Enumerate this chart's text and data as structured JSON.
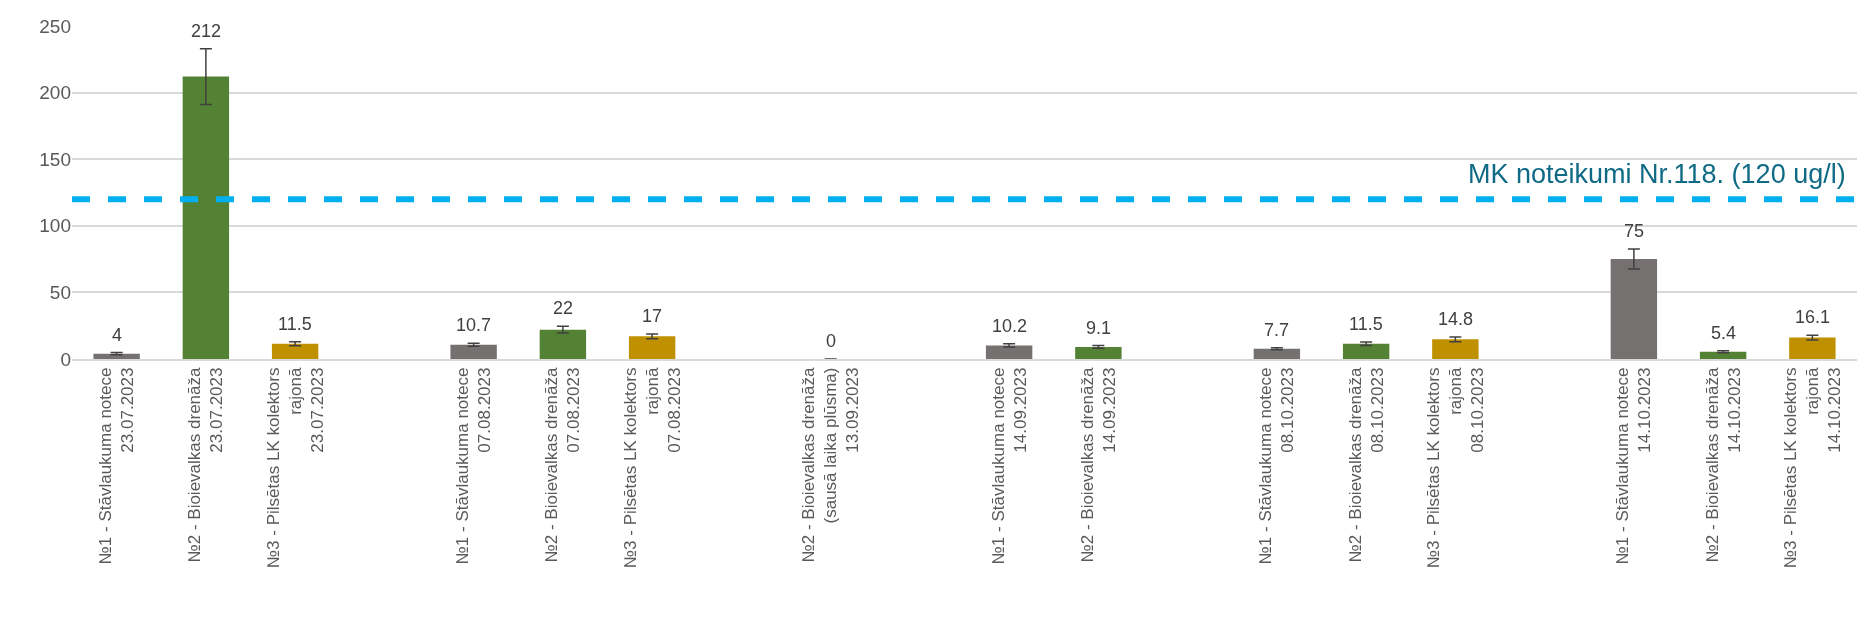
{
  "chart_data": {
    "type": "bar",
    "categories": [
      "№1 - Stāvlaukuma notece\n23.07.2023",
      "№2 - Bioievalkas drenāža\n23.07.2023",
      "№3 - Pilsētas LK kolektors\nrajonā\n23.07.2023",
      null,
      "№1 - Stāvlaukuma notece\n07.08.2023",
      "№2 - Bioievalkas drenāža\n07.08.2023",
      "№3 - Pilsētas LK kolektors\nrajonā\n07.08.2023",
      null,
      "№2 - Bioievalkas drenāža\n(sausā laika plūsma)\n13.09.2023",
      null,
      "№1 - Stāvlaukuma notece\n14.09.2023",
      "№2 - Bioievalkas drenāža\n14.09.2023",
      null,
      "№1 - Stāvlaukuma notece\n08.10.2023",
      "№2 - Bioievalkas drenāža\n08.10.2023",
      "№3 - Pilsētas LK kolektors\nrajonā\n08.10.2023",
      null,
      "№1 - Stāvlaukuma notece\n14.10.2023",
      "№2 - Bioievalkas drenāža\n14.10.2023",
      "№3 - Pilsētas LK kolektors\nrajonā\n14.10.2023"
    ],
    "values": [
      4,
      212,
      11.5,
      null,
      10.7,
      22,
      17,
      null,
      0,
      null,
      10.2,
      9.1,
      null,
      7.7,
      11.5,
      14.8,
      null,
      75,
      5.4,
      16.1
    ],
    "errors": [
      0.8,
      21,
      1.5,
      null,
      1.2,
      2.5,
      1.8,
      null,
      null,
      null,
      1.2,
      1,
      null,
      0.7,
      1.3,
      1.8,
      null,
      7.5,
      0.7,
      1.8
    ],
    "colors": [
      "#767171",
      "#548235",
      "#bf9000",
      null,
      "#767171",
      "#548235",
      "#bf9000",
      null,
      "#548235",
      null,
      "#767171",
      "#548235",
      null,
      "#767171",
      "#548235",
      "#bf9000",
      null,
      "#767171",
      "#548235",
      "#bf9000"
    ],
    "data_labels": true,
    "ylim": [
      0,
      250
    ],
    "yticks": [
      0,
      50,
      100,
      150,
      200,
      250
    ],
    "grid": "y",
    "ref_lines": [
      {
        "axis": "y",
        "value": 120,
        "label": "MK noteikumi Nr.118. (120 ug/l)",
        "color": "#00b0f0",
        "line_style": "dashed"
      }
    ]
  }
}
